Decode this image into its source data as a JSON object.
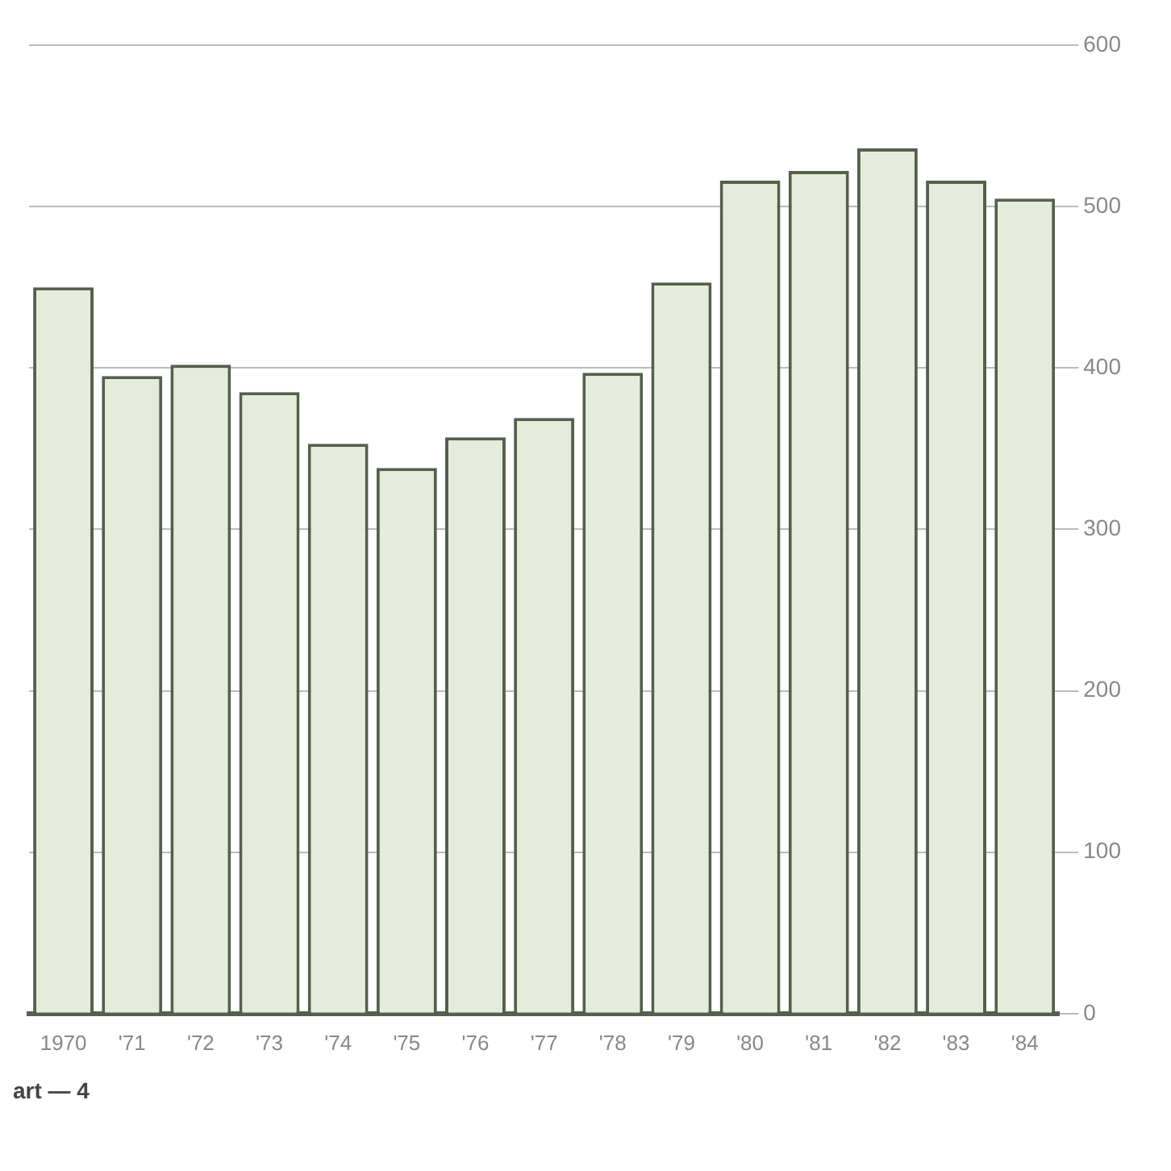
{
  "chart_data": {
    "type": "bar",
    "categories": [
      "1970",
      "'71",
      "'72",
      "'73",
      "'74",
      "'75",
      "'76",
      "'77",
      "'78",
      "'79",
      "'80",
      "'81",
      "'82",
      "'83",
      "'84"
    ],
    "values": [
      450,
      395,
      402,
      385,
      353,
      338,
      357,
      369,
      397,
      453,
      516,
      522,
      536,
      516,
      505
    ],
    "color": "#e6ecdc",
    "ylim": [
      0,
      600
    ],
    "yticks": [
      0,
      100,
      200,
      300,
      400,
      500,
      600
    ],
    "grid": "y",
    "annotations": [
      "art — 4"
    ]
  }
}
